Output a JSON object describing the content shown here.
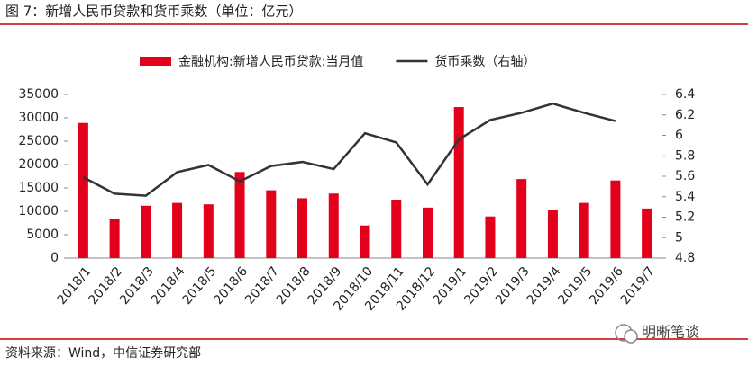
{
  "chart_data": {
    "type": "bar_line",
    "title": "图 7：新增人民币贷款和货币乘数（单位：亿元）",
    "categories": [
      "2018/1",
      "2018/2",
      "2018/3",
      "2018/4",
      "2018/5",
      "2018/6",
      "2018/7",
      "2018/8",
      "2018/9",
      "2018/10",
      "2018/11",
      "2018/12",
      "2019/1",
      "2019/2",
      "2019/3",
      "2019/4",
      "2019/5",
      "2019/6",
      "2019/7"
    ],
    "series": [
      {
        "name": "金融机构:新增人民币贷款:当月值",
        "type": "bar",
        "color": "#e2001a",
        "values": [
          28900,
          8400,
          11200,
          11800,
          11500,
          18400,
          14500,
          12800,
          13800,
          6970,
          12500,
          10800,
          32300,
          8900,
          16900,
          10200,
          11800,
          16600,
          10600
        ]
      },
      {
        "name": "货币乘数（右轴）",
        "type": "line",
        "axis": "y2",
        "color": "#333333",
        "values": [
          5.59,
          5.43,
          5.41,
          5.64,
          5.71,
          5.55,
          5.7,
          5.74,
          5.67,
          6.02,
          5.93,
          5.52,
          5.96,
          6.15,
          6.22,
          6.31,
          6.22,
          6.14,
          null
        ]
      }
    ],
    "ylim": [
      0,
      35000
    ],
    "yticks": [
      0,
      5000,
      10000,
      15000,
      20000,
      25000,
      30000,
      35000
    ],
    "y2lim": [
      4.8,
      6.4
    ],
    "y2ticks": [
      4.8,
      5,
      5.2,
      5.4,
      5.6,
      5.8,
      6,
      6.2,
      6.4
    ],
    "legend": "top",
    "source": "资料来源：Wind，中信证券研究部",
    "watermark": "明晰笔谈"
  }
}
